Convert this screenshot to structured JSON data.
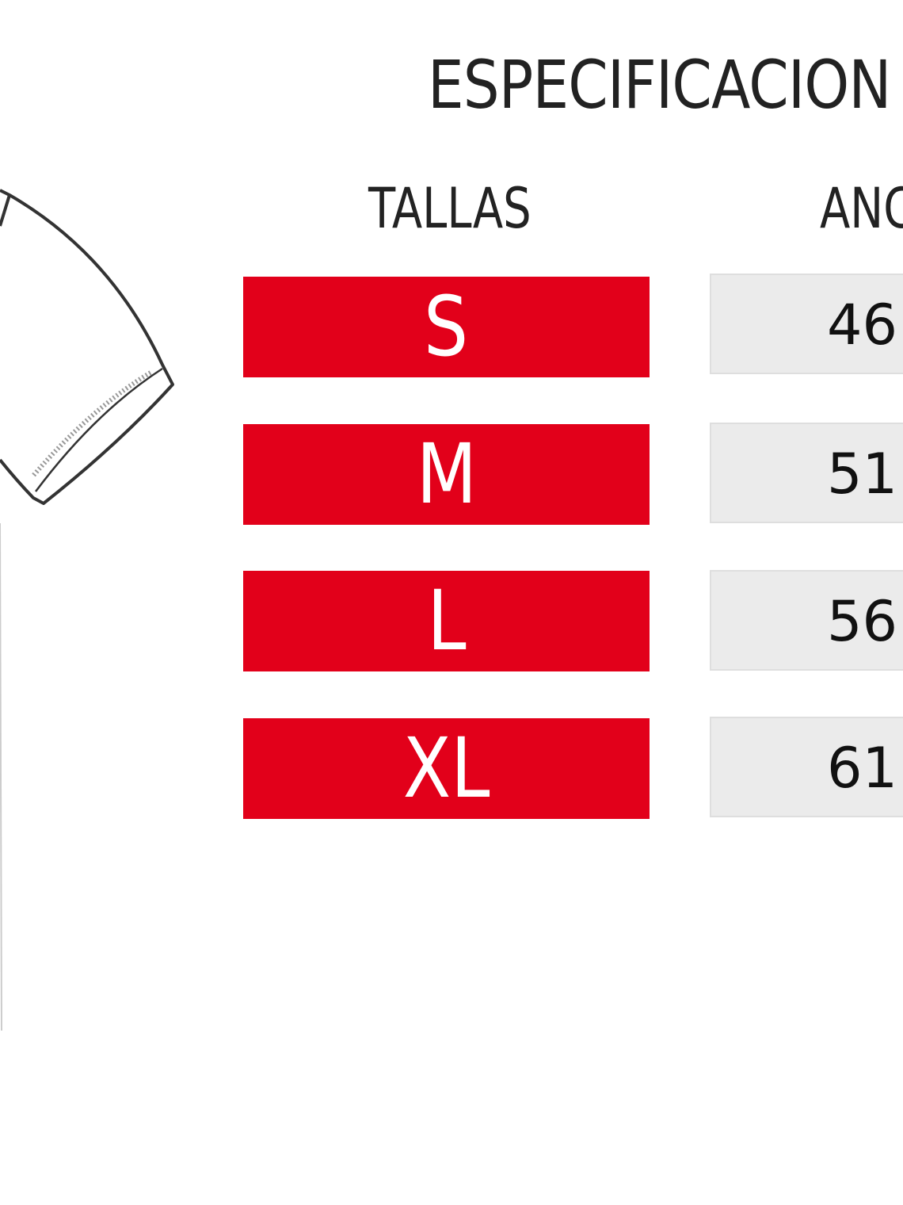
{
  "title": "ESPECIFICACION",
  "headers": {
    "sizes": "TALLAS",
    "width": "ANC"
  },
  "rows": [
    {
      "size": "S",
      "width": "46"
    },
    {
      "size": "M",
      "width": "51"
    },
    {
      "size": "L",
      "width": "56"
    },
    {
      "size": "XL",
      "width": "61"
    }
  ],
  "colors": {
    "size_bg": "#e2001a",
    "value_bg": "#ebebeb",
    "text": "#222222"
  },
  "icons": [
    "garment-sleeve-drawing"
  ]
}
